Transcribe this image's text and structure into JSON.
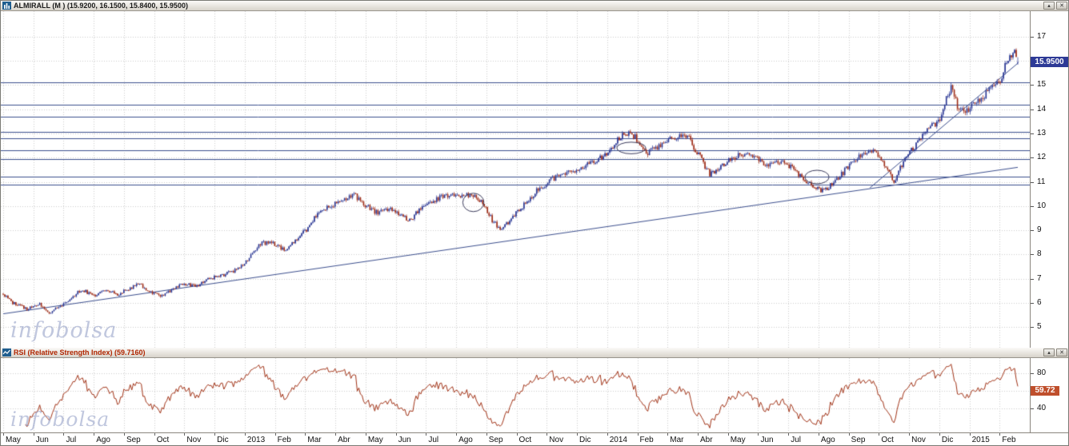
{
  "window": {
    "rollup_glyph": "▴",
    "close_glyph": "✕"
  },
  "watermark": "infobolsa",
  "price_panel": {
    "title": "ALMIRALL (M ) (15.9200, 16.1500, 15.8400, 15.9500)",
    "last_price_label": "15.9500"
  },
  "rsi_panel": {
    "title": "RSI (Relative Strength Index) (59.7160)",
    "last_value_label": "59.72"
  },
  "chart_data": {
    "type": "candlestick",
    "symbol": "ALMIRALL",
    "period_flag": "M",
    "ohlc_display": {
      "open": 15.92,
      "high": 16.15,
      "low": 15.84,
      "close": 15.95
    },
    "y_ticks": [
      5,
      6,
      7,
      8,
      9,
      10,
      11,
      12,
      13,
      14,
      15,
      16,
      17
    ],
    "ylim": [
      4.15,
      18.05
    ],
    "x_labels": [
      "May",
      "Jun",
      "Jul",
      "Ago",
      "Sep",
      "Oct",
      "Nov",
      "Dic",
      "2013",
      "Feb",
      "Mar",
      "Abr",
      "May",
      "Jun",
      "Jul",
      "Ago",
      "Sep",
      "Oct",
      "Nov",
      "Dic",
      "2014",
      "Feb",
      "Mar",
      "Abr",
      "May",
      "Jun",
      "Jul",
      "Ago",
      "Sep",
      "Oct",
      "Nov",
      "Dic",
      "2015",
      "Feb"
    ],
    "months_total": 33.6,
    "candle_count": 640,
    "price_anchors": [
      [
        0,
        6.35
      ],
      [
        0.3,
        6.0
      ],
      [
        0.8,
        5.75
      ],
      [
        1.2,
        5.95
      ],
      [
        1.5,
        5.6
      ],
      [
        1.8,
        5.8
      ],
      [
        2.2,
        6.15
      ],
      [
        2.6,
        6.55
      ],
      [
        3,
        6.3
      ],
      [
        3.4,
        6.55
      ],
      [
        3.8,
        6.35
      ],
      [
        4.2,
        6.6
      ],
      [
        4.5,
        6.85
      ],
      [
        4.8,
        6.45
      ],
      [
        5.2,
        6.3
      ],
      [
        5.6,
        6.55
      ],
      [
        6,
        6.8
      ],
      [
        6.4,
        6.65
      ],
      [
        6.8,
        7.0
      ],
      [
        7.3,
        7.15
      ],
      [
        7.7,
        7.35
      ],
      [
        8.1,
        7.8
      ],
      [
        8.5,
        8.45
      ],
      [
        8.9,
        8.5
      ],
      [
        9.3,
        8.2
      ],
      [
        9.7,
        8.6
      ],
      [
        10.1,
        9.1
      ],
      [
        10.5,
        9.85
      ],
      [
        10.9,
        10.05
      ],
      [
        11.3,
        10.3
      ],
      [
        11.6,
        10.5
      ],
      [
        12,
        10.05
      ],
      [
        12.4,
        9.7
      ],
      [
        12.8,
        9.95
      ],
      [
        13.2,
        9.55
      ],
      [
        13.5,
        9.45
      ],
      [
        13.9,
        10.05
      ],
      [
        14.3,
        10.25
      ],
      [
        14.7,
        10.45
      ],
      [
        15.1,
        10.4
      ],
      [
        15.5,
        10.5
      ],
      [
        15.9,
        10.1
      ],
      [
        16.2,
        9.4
      ],
      [
        16.5,
        9.0
      ],
      [
        16.8,
        9.45
      ],
      [
        17.2,
        10.0
      ],
      [
        17.6,
        10.55
      ],
      [
        18,
        10.95
      ],
      [
        18.4,
        11.3
      ],
      [
        18.8,
        11.45
      ],
      [
        19.2,
        11.65
      ],
      [
        19.6,
        11.85
      ],
      [
        20,
        12.2
      ],
      [
        20.4,
        12.85
      ],
      [
        20.7,
        13.05
      ],
      [
        21,
        12.75
      ],
      [
        21.3,
        12.2
      ],
      [
        21.6,
        12.35
      ],
      [
        22,
        12.7
      ],
      [
        22.4,
        12.95
      ],
      [
        22.7,
        12.8
      ],
      [
        23.1,
        12.0
      ],
      [
        23.4,
        11.3
      ],
      [
        23.7,
        11.6
      ],
      [
        24.1,
        11.95
      ],
      [
        24.5,
        12.15
      ],
      [
        24.9,
        12.0
      ],
      [
        25.3,
        11.6
      ],
      [
        25.7,
        11.85
      ],
      [
        26.1,
        11.6
      ],
      [
        26.5,
        11.1
      ],
      [
        26.9,
        10.8
      ],
      [
        27.2,
        10.6
      ],
      [
        27.6,
        11.1
      ],
      [
        28,
        11.65
      ],
      [
        28.4,
        12.1
      ],
      [
        28.8,
        12.25
      ],
      [
        29.2,
        11.7
      ],
      [
        29.5,
        10.95
      ],
      [
        29.8,
        11.8
      ],
      [
        30.2,
        12.5
      ],
      [
        30.6,
        13.1
      ],
      [
        31,
        13.55
      ],
      [
        31.4,
        15.0
      ],
      [
        31.6,
        14.1
      ],
      [
        31.9,
        13.95
      ],
      [
        32.2,
        14.3
      ],
      [
        32.6,
        14.7
      ],
      [
        33,
        15.2
      ],
      [
        33.3,
        16.1
      ],
      [
        33.5,
        16.55
      ],
      [
        33.6,
        15.95
      ]
    ],
    "support_resistance_levels": [
      15.1,
      14.2,
      13.7,
      13.05,
      12.8,
      12.3,
      11.95,
      11.2,
      10.9
    ],
    "trendlines": [
      {
        "t1": 0,
        "p1": 5.55,
        "t2": 33.6,
        "p2": 11.6
      },
      {
        "t1": 28.7,
        "p1": 10.75,
        "t2": 33.6,
        "p2": 15.9
      }
    ],
    "ellipse_annotations": [
      {
        "t": 15.57,
        "p": 10.15,
        "rt": 0.35,
        "rp": 0.38
      },
      {
        "t": 20.8,
        "p": 12.4,
        "rt": 0.48,
        "rp": 0.24
      },
      {
        "t": 26.95,
        "p": 11.2,
        "rt": 0.4,
        "rp": 0.28
      }
    ],
    "colors": {
      "up": "#283593",
      "down": "#9e2b16",
      "grid": "#cdcdcd",
      "level": "#3c4f8e",
      "trendline": "#3c4f8e",
      "ellipse": "#3b3b5c",
      "rsi_line": "#a23418",
      "price_tag_bg": "#2d3a96",
      "rsi_tag_bg": "#bf4f2c"
    },
    "rsi": {
      "type": "line",
      "period": 14,
      "ticks": [
        40,
        60,
        80
      ],
      "ylim": [
        13,
        97
      ],
      "last_value": 59.716
    }
  }
}
